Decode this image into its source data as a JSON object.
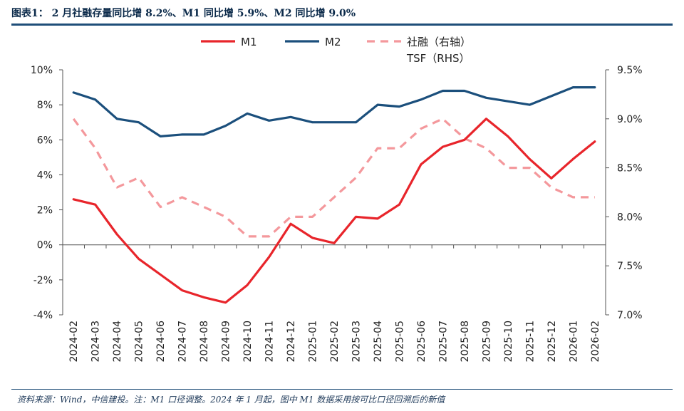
{
  "figure": {
    "title": "图表1： 2 月社融存量同比增 8.2%、M1 同比增 5.9%、M2 同比增 9.0%",
    "source_note": "资料来源：Wind，中信建投。注：M1 口径调整。2024 年 1 月起，图中 M1 数据采用按可比口径回溯后的新值"
  },
  "chart_data": {
    "type": "line",
    "x": [
      "2024-02",
      "2024-03",
      "2024-04",
      "2024-05",
      "2024-06",
      "2024-07",
      "2024-08",
      "2024-09",
      "2024-10",
      "2024-11",
      "2024-12",
      "2025-01",
      "2025-02",
      "2025-03",
      "2025-04",
      "2025-05",
      "2025-06",
      "2025-07",
      "2025-08",
      "2025-09",
      "2025-10",
      "2025-11",
      "2025-12",
      "2026-01",
      "2026-02"
    ],
    "left_axis": {
      "ylim": [
        -4,
        10
      ],
      "ticks": [
        "-4%",
        "-2%",
        "0%",
        "2%",
        "4%",
        "6%",
        "8%",
        "10%"
      ]
    },
    "right_axis": {
      "ylim": [
        7.0,
        9.5
      ],
      "ticks": [
        "7.0%",
        "7.5%",
        "8.0%",
        "8.5%",
        "9.0%",
        "9.5%"
      ]
    },
    "legend_position": "top",
    "series": [
      {
        "name": "M1",
        "axis": "left",
        "style": "solid",
        "color": "#e8252b",
        "values": [
          2.6,
          2.3,
          0.6,
          -0.8,
          -1.7,
          -2.6,
          -3.0,
          -3.3,
          -2.3,
          -0.7,
          1.2,
          0.4,
          0.1,
          1.6,
          1.5,
          2.3,
          4.6,
          5.6,
          6.0,
          7.2,
          6.2,
          4.9,
          3.8,
          4.9,
          5.9
        ]
      },
      {
        "name": "M2",
        "axis": "left",
        "style": "solid",
        "color": "#1b4f7c",
        "values": [
          8.7,
          8.3,
          7.2,
          7.0,
          6.2,
          6.3,
          6.3,
          6.8,
          7.5,
          7.1,
          7.3,
          7.0,
          7.0,
          7.0,
          8.0,
          7.9,
          8.3,
          8.8,
          8.8,
          8.4,
          8.2,
          8.0,
          8.5,
          9.0,
          9.0
        ]
      },
      {
        "name": "社融（右轴）",
        "name_line2": "TSF（RHS）",
        "axis": "right",
        "style": "dashed",
        "color": "#f4989c",
        "values": [
          9.0,
          8.7,
          8.3,
          8.4,
          8.1,
          8.2,
          8.1,
          8.0,
          7.8,
          7.8,
          8.0,
          8.0,
          8.2,
          8.4,
          8.7,
          8.7,
          8.9,
          9.0,
          8.8,
          8.7,
          8.5,
          8.5,
          8.3,
          8.2,
          8.2
        ]
      }
    ]
  }
}
